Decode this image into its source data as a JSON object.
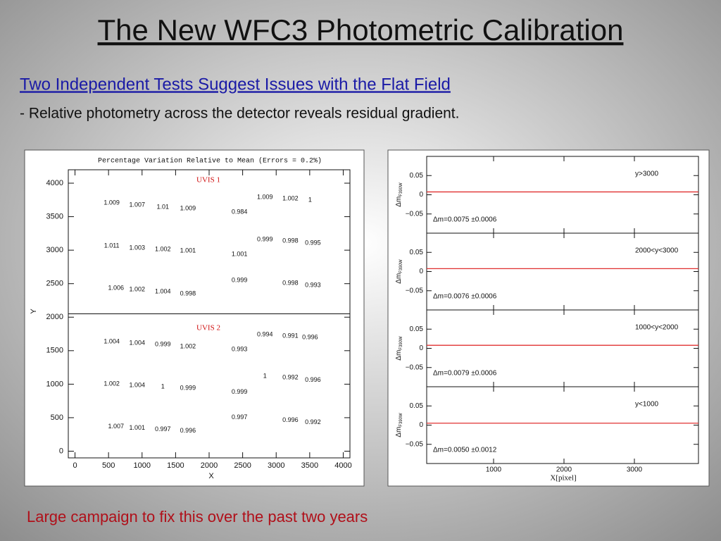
{
  "title": "The New WFC3 Photometric Calibration",
  "subtitle": "Two Independent Tests Suggest Issues with the Flat Field",
  "bullet": "- Relative photometry across the detector reveals residual gradient.",
  "footer": "Large campaign to fix this over the past two years",
  "chart_data": [
    {
      "type": "scatter",
      "title": "Percentage Variation Relative to Mean (Errors = 0.2%)",
      "xlabel": "X",
      "ylabel": "Y",
      "xlim": [
        -100,
        4100
      ],
      "ylim": [
        -100,
        4200
      ],
      "xticks": [
        0,
        500,
        1000,
        1500,
        2000,
        2500,
        3000,
        3500,
        4000
      ],
      "yticks": [
        0,
        500,
        1000,
        1500,
        2000,
        2500,
        3000,
        3500,
        4000
      ],
      "annotations": [
        "UVIS 1",
        "UVIS 2"
      ],
      "hlines": [
        2050
      ],
      "x": [
        547,
        926,
        1310,
        1684,
        2453,
        2832,
        3211,
        3505,
        547,
        926,
        1310,
        1684,
        2453,
        2832,
        3211,
        3547,
        611,
        926,
        1310,
        1684,
        2453,
        3211,
        3547,
        547,
        926,
        1310,
        1684,
        2453,
        2832,
        3211,
        3505,
        547,
        926,
        1310,
        1684,
        2453,
        2832,
        3211,
        3547,
        611,
        926,
        1310,
        1684,
        2453,
        3211,
        3547
      ],
      "y": [
        3705,
        3674,
        3642,
        3621,
        3568,
        3789,
        3768,
        3747,
        3063,
        3032,
        3011,
        2989,
        2937,
        3158,
        3137,
        3105,
        2432,
        2411,
        2379,
        2347,
        2547,
        2505,
        2474,
        1632,
        1611,
        1589,
        1558,
        1516,
        1737,
        1716,
        1695,
        1000,
        979,
        958,
        937,
        884,
        1116,
        1095,
        1063,
        368,
        347,
        326,
        305,
        505,
        463,
        432
      ],
      "values": [
        1.009,
        1.007,
        1.01,
        1.009,
        0.984,
        1.009,
        1.002,
        1,
        1.011,
        1.003,
        1.002,
        1.001,
        1.001,
        0.999,
        0.998,
        0.995,
        1.006,
        1.002,
        1.004,
        0.998,
        0.999,
        0.998,
        0.993,
        1.004,
        1.004,
        0.999,
        1.002,
        0.993,
        0.994,
        0.991,
        0.996,
        1.002,
        1.004,
        1,
        0.999,
        0.999,
        1,
        0.992,
        0.996,
        1.007,
        1.001,
        0.997,
        0.996,
        0.997,
        0.996,
        0.992
      ]
    },
    {
      "type": "line",
      "xlabel": "X[pixel]",
      "ylabel": "Δm",
      "ylabel_sub": "F390W",
      "xlim": [
        50,
        3910
      ],
      "xticks": [
        1000,
        2000,
        3000
      ],
      "ylim": [
        -0.1,
        0.1
      ],
      "yticks": [
        {
          "value": -0.05,
          "label": "−0.05"
        },
        0,
        0.05
      ],
      "color": "#e03030",
      "panels": [
        {
          "name": "y>3000",
          "value": 0.0075,
          "annotation": "Δm=0.0075 ±0.0006"
        },
        {
          "name": "2000<y<3000",
          "value": 0.0076,
          "annotation": "Δm=0.0076 ±0.0006"
        },
        {
          "name": "1000<y<2000",
          "value": 0.0079,
          "annotation": "Δm=0.0079 ±0.0006"
        },
        {
          "name": "y<1000",
          "value": 0.005,
          "annotation": "Δm=0.0050 ±0.0012"
        }
      ]
    }
  ]
}
